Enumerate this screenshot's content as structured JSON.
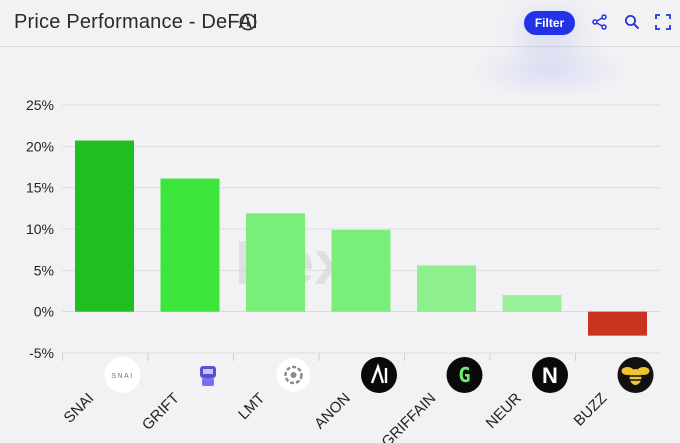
{
  "header": {
    "title": "Price Performance - DeFAI",
    "filter_label": "Filter",
    "icons": [
      "info-icon",
      "share-icon",
      "search-icon",
      "fullscreen-icon"
    ]
  },
  "watermark": "Dexu",
  "colors": {
    "filter": "#2233e6",
    "positive_strong": "#1fbf1f",
    "positive": "#3ce63c",
    "positive_light": "#79ee79",
    "positive_pale": "#9af09a",
    "negative": "#c8341f"
  },
  "chart_data": {
    "type": "bar",
    "categories": [
      "SNAI",
      "GRIFT",
      "LMT",
      "ANON",
      "GRIFFAIN",
      "NEUR",
      "BUZZ"
    ],
    "values": [
      20.7,
      16.1,
      11.9,
      9.9,
      5.6,
      2.0,
      -2.9
    ],
    "bar_colors": [
      "#1fbf1f",
      "#3ce63c",
      "#79ee79",
      "#79ee79",
      "#8eef8e",
      "#9af09a",
      "#c8341f"
    ],
    "category_icons": [
      "snai-logo",
      "grift-robot-logo",
      "lmt-logo",
      "anon-logo",
      "griffain-logo",
      "neur-logo",
      "buzz-bee-logo"
    ],
    "ylim": [
      -5,
      25
    ],
    "yticks": [
      25,
      20,
      15,
      10,
      5,
      0,
      -5
    ],
    "ytick_labels": [
      "25%",
      "20%",
      "15%",
      "10%",
      "5%",
      "0%",
      "-5%"
    ],
    "grid": true
  }
}
